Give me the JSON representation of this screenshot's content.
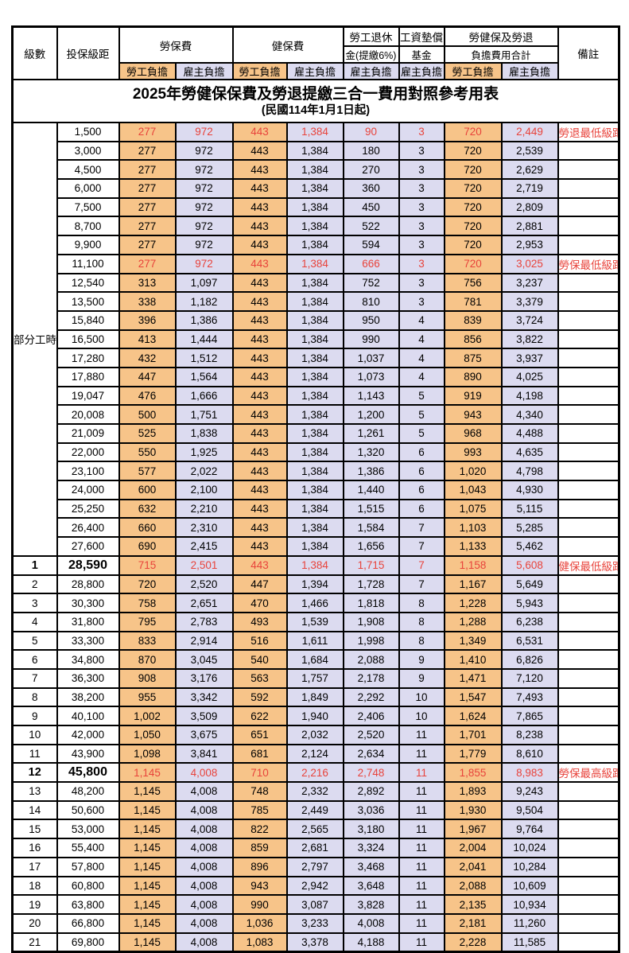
{
  "title": "2025年勞健保保費及勞退提繳三合一費用對照參考用表",
  "subtitle": "(民國114年1月1日起)",
  "colors": {
    "employee_bg": "#F7C489",
    "employer_bg": "#DCDBF0",
    "highlight_red": "#E8433B",
    "border": "#000000"
  },
  "header": {
    "level": "級數",
    "salary_bracket": "投保級距",
    "labor_insurance": "勞保費",
    "health_insurance": "健保費",
    "pension_line1": "勞工退休",
    "pension_line2": "金(提繳6%)",
    "wage_fund_line1": "工資墊償",
    "wage_fund_line2": "基金",
    "total_line1": "勞健保及勞退",
    "total_line2": "負擔費用合計",
    "employee": "勞工負擔",
    "employer": "雇主負擔",
    "remark": "備註"
  },
  "part_time_label": "部分工時",
  "part_time_rowspan": 23,
  "rows": [
    {
      "lv": "",
      "base": "1,500",
      "v": [
        "277",
        "972",
        "443",
        "1,384",
        "90",
        "3",
        "720",
        "2,449"
      ],
      "note": "勞退最低級距",
      "red": true,
      "big": false
    },
    {
      "lv": "",
      "base": "3,000",
      "v": [
        "277",
        "972",
        "443",
        "1,384",
        "180",
        "3",
        "720",
        "2,539"
      ],
      "note": "",
      "red": false,
      "big": false
    },
    {
      "lv": "",
      "base": "4,500",
      "v": [
        "277",
        "972",
        "443",
        "1,384",
        "270",
        "3",
        "720",
        "2,629"
      ],
      "note": "",
      "red": false,
      "big": false
    },
    {
      "lv": "",
      "base": "6,000",
      "v": [
        "277",
        "972",
        "443",
        "1,384",
        "360",
        "3",
        "720",
        "2,719"
      ],
      "note": "",
      "red": false,
      "big": false
    },
    {
      "lv": "",
      "base": "7,500",
      "v": [
        "277",
        "972",
        "443",
        "1,384",
        "450",
        "3",
        "720",
        "2,809"
      ],
      "note": "",
      "red": false,
      "big": false
    },
    {
      "lv": "",
      "base": "8,700",
      "v": [
        "277",
        "972",
        "443",
        "1,384",
        "522",
        "3",
        "720",
        "2,881"
      ],
      "note": "",
      "red": false,
      "big": false
    },
    {
      "lv": "",
      "base": "9,900",
      "v": [
        "277",
        "972",
        "443",
        "1,384",
        "594",
        "3",
        "720",
        "2,953"
      ],
      "note": "",
      "red": false,
      "big": false
    },
    {
      "lv": "",
      "base": "11,100",
      "v": [
        "277",
        "972",
        "443",
        "1,384",
        "666",
        "3",
        "720",
        "3,025"
      ],
      "note": "勞保最低級距",
      "red": true,
      "big": false
    },
    {
      "lv": "",
      "base": "12,540",
      "v": [
        "313",
        "1,097",
        "443",
        "1,384",
        "752",
        "3",
        "756",
        "3,237"
      ],
      "note": "",
      "red": false,
      "big": false
    },
    {
      "lv": "",
      "base": "13,500",
      "v": [
        "338",
        "1,182",
        "443",
        "1,384",
        "810",
        "3",
        "781",
        "3,379"
      ],
      "note": "",
      "red": false,
      "big": false
    },
    {
      "lv": "",
      "base": "15,840",
      "v": [
        "396",
        "1,386",
        "443",
        "1,384",
        "950",
        "4",
        "839",
        "3,724"
      ],
      "note": "",
      "red": false,
      "big": false
    },
    {
      "lv": "",
      "base": "16,500",
      "v": [
        "413",
        "1,444",
        "443",
        "1,384",
        "990",
        "4",
        "856",
        "3,822"
      ],
      "note": "",
      "red": false,
      "big": false
    },
    {
      "lv": "",
      "base": "17,280",
      "v": [
        "432",
        "1,512",
        "443",
        "1,384",
        "1,037",
        "4",
        "875",
        "3,937"
      ],
      "note": "",
      "red": false,
      "big": false
    },
    {
      "lv": "",
      "base": "17,880",
      "v": [
        "447",
        "1,564",
        "443",
        "1,384",
        "1,073",
        "4",
        "890",
        "4,025"
      ],
      "note": "",
      "red": false,
      "big": false
    },
    {
      "lv": "",
      "base": "19,047",
      "v": [
        "476",
        "1,666",
        "443",
        "1,384",
        "1,143",
        "5",
        "919",
        "4,198"
      ],
      "note": "",
      "red": false,
      "big": false
    },
    {
      "lv": "",
      "base": "20,008",
      "v": [
        "500",
        "1,751",
        "443",
        "1,384",
        "1,200",
        "5",
        "943",
        "4,340"
      ],
      "note": "",
      "red": false,
      "big": false
    },
    {
      "lv": "",
      "base": "21,009",
      "v": [
        "525",
        "1,838",
        "443",
        "1,384",
        "1,261",
        "5",
        "968",
        "4,488"
      ],
      "note": "",
      "red": false,
      "big": false
    },
    {
      "lv": "",
      "base": "22,000",
      "v": [
        "550",
        "1,925",
        "443",
        "1,384",
        "1,320",
        "6",
        "993",
        "4,635"
      ],
      "note": "",
      "red": false,
      "big": false
    },
    {
      "lv": "",
      "base": "23,100",
      "v": [
        "577",
        "2,022",
        "443",
        "1,384",
        "1,386",
        "6",
        "1,020",
        "4,798"
      ],
      "note": "",
      "red": false,
      "big": false
    },
    {
      "lv": "",
      "base": "24,000",
      "v": [
        "600",
        "2,100",
        "443",
        "1,384",
        "1,440",
        "6",
        "1,043",
        "4,930"
      ],
      "note": "",
      "red": false,
      "big": false
    },
    {
      "lv": "",
      "base": "25,250",
      "v": [
        "632",
        "2,210",
        "443",
        "1,384",
        "1,515",
        "6",
        "1,075",
        "5,115"
      ],
      "note": "",
      "red": false,
      "big": false
    },
    {
      "lv": "",
      "base": "26,400",
      "v": [
        "660",
        "2,310",
        "443",
        "1,384",
        "1,584",
        "7",
        "1,103",
        "5,285"
      ],
      "note": "",
      "red": false,
      "big": false
    },
    {
      "lv": "",
      "base": "27,600",
      "v": [
        "690",
        "2,415",
        "443",
        "1,384",
        "1,656",
        "7",
        "1,133",
        "5,462"
      ],
      "note": "",
      "red": false,
      "big": false
    },
    {
      "lv": "1",
      "base": "28,590",
      "v": [
        "715",
        "2,501",
        "443",
        "1,384",
        "1,715",
        "7",
        "1,158",
        "5,608"
      ],
      "note": "健保最低級距",
      "red": true,
      "big": true
    },
    {
      "lv": "2",
      "base": "28,800",
      "v": [
        "720",
        "2,520",
        "447",
        "1,394",
        "1,728",
        "7",
        "1,167",
        "5,649"
      ],
      "note": "",
      "red": false,
      "big": false
    },
    {
      "lv": "3",
      "base": "30,300",
      "v": [
        "758",
        "2,651",
        "470",
        "1,466",
        "1,818",
        "8",
        "1,228",
        "5,943"
      ],
      "note": "",
      "red": false,
      "big": false
    },
    {
      "lv": "4",
      "base": "31,800",
      "v": [
        "795",
        "2,783",
        "493",
        "1,539",
        "1,908",
        "8",
        "1,288",
        "6,238"
      ],
      "note": "",
      "red": false,
      "big": false
    },
    {
      "lv": "5",
      "base": "33,300",
      "v": [
        "833",
        "2,914",
        "516",
        "1,611",
        "1,998",
        "8",
        "1,349",
        "6,531"
      ],
      "note": "",
      "red": false,
      "big": false
    },
    {
      "lv": "6",
      "base": "34,800",
      "v": [
        "870",
        "3,045",
        "540",
        "1,684",
        "2,088",
        "9",
        "1,410",
        "6,826"
      ],
      "note": "",
      "red": false,
      "big": false
    },
    {
      "lv": "7",
      "base": "36,300",
      "v": [
        "908",
        "3,176",
        "563",
        "1,757",
        "2,178",
        "9",
        "1,471",
        "7,120"
      ],
      "note": "",
      "red": false,
      "big": false
    },
    {
      "lv": "8",
      "base": "38,200",
      "v": [
        "955",
        "3,342",
        "592",
        "1,849",
        "2,292",
        "10",
        "1,547",
        "7,493"
      ],
      "note": "",
      "red": false,
      "big": false
    },
    {
      "lv": "9",
      "base": "40,100",
      "v": [
        "1,002",
        "3,509",
        "622",
        "1,940",
        "2,406",
        "10",
        "1,624",
        "7,865"
      ],
      "note": "",
      "red": false,
      "big": false
    },
    {
      "lv": "10",
      "base": "42,000",
      "v": [
        "1,050",
        "3,675",
        "651",
        "2,032",
        "2,520",
        "11",
        "1,701",
        "8,238"
      ],
      "note": "",
      "red": false,
      "big": false
    },
    {
      "lv": "11",
      "base": "43,900",
      "v": [
        "1,098",
        "3,841",
        "681",
        "2,124",
        "2,634",
        "11",
        "1,779",
        "8,610"
      ],
      "note": "",
      "red": false,
      "big": false
    },
    {
      "lv": "12",
      "base": "45,800",
      "v": [
        "1,145",
        "4,008",
        "710",
        "2,216",
        "2,748",
        "11",
        "1,855",
        "8,983"
      ],
      "note": "勞保最高級距",
      "red": true,
      "big": true
    },
    {
      "lv": "13",
      "base": "48,200",
      "v": [
        "1,145",
        "4,008",
        "748",
        "2,332",
        "2,892",
        "11",
        "1,893",
        "9,243"
      ],
      "note": "",
      "red": false,
      "big": false
    },
    {
      "lv": "14",
      "base": "50,600",
      "v": [
        "1,145",
        "4,008",
        "785",
        "2,449",
        "3,036",
        "11",
        "1,930",
        "9,504"
      ],
      "note": "",
      "red": false,
      "big": false
    },
    {
      "lv": "15",
      "base": "53,000",
      "v": [
        "1,145",
        "4,008",
        "822",
        "2,565",
        "3,180",
        "11",
        "1,967",
        "9,764"
      ],
      "note": "",
      "red": false,
      "big": false
    },
    {
      "lv": "16",
      "base": "55,400",
      "v": [
        "1,145",
        "4,008",
        "859",
        "2,681",
        "3,324",
        "11",
        "2,004",
        "10,024"
      ],
      "note": "",
      "red": false,
      "big": false
    },
    {
      "lv": "17",
      "base": "57,800",
      "v": [
        "1,145",
        "4,008",
        "896",
        "2,797",
        "3,468",
        "11",
        "2,041",
        "10,284"
      ],
      "note": "",
      "red": false,
      "big": false
    },
    {
      "lv": "18",
      "base": "60,800",
      "v": [
        "1,145",
        "4,008",
        "943",
        "2,942",
        "3,648",
        "11",
        "2,088",
        "10,609"
      ],
      "note": "",
      "red": false,
      "big": false
    },
    {
      "lv": "19",
      "base": "63,800",
      "v": [
        "1,145",
        "4,008",
        "990",
        "3,087",
        "3,828",
        "11",
        "2,135",
        "10,934"
      ],
      "note": "",
      "red": false,
      "big": false
    },
    {
      "lv": "20",
      "base": "66,800",
      "v": [
        "1,145",
        "4,008",
        "1,036",
        "3,233",
        "4,008",
        "11",
        "2,181",
        "11,260"
      ],
      "note": "",
      "red": false,
      "big": false
    },
    {
      "lv": "21",
      "base": "69,800",
      "v": [
        "1,145",
        "4,008",
        "1,083",
        "3,378",
        "4,188",
        "11",
        "2,228",
        "11,585"
      ],
      "note": "",
      "red": false,
      "big": false
    }
  ],
  "value_column_kinds": [
    "o",
    "l",
    "o",
    "l",
    "l",
    "l",
    "o",
    "l"
  ]
}
